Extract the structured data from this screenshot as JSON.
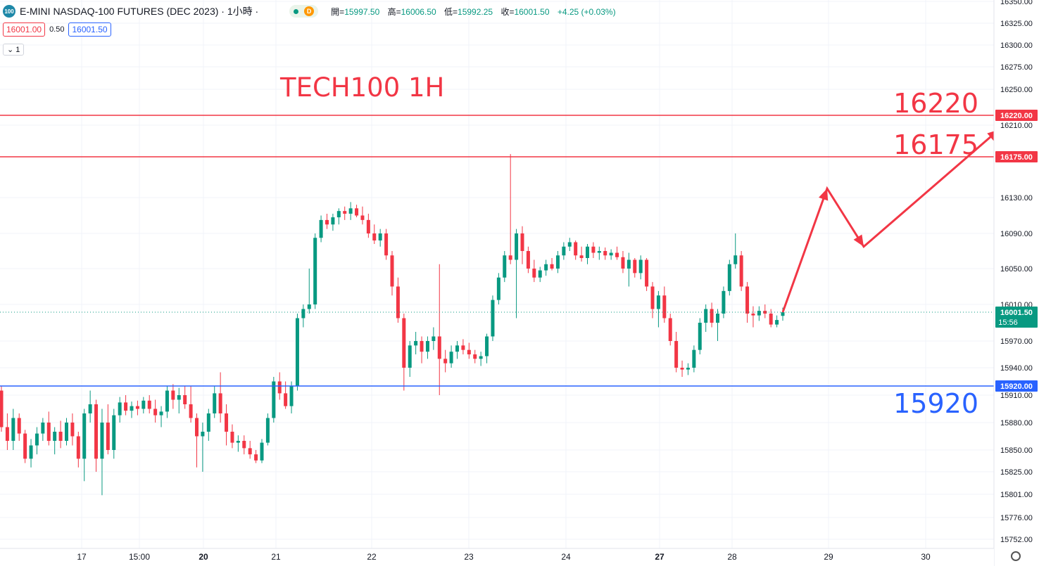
{
  "header": {
    "logo_text": "100",
    "symbol": "E-MINI NASDAQ-100 FUTURES (DEC 2023) · 1小時 ·",
    "badge_letter": "D",
    "open_label": "開=",
    "open_value": "15997.50",
    "high_label": "高=",
    "high_value": "16006.50",
    "low_label": "低=",
    "low_value": "15992.25",
    "close_label": "收=",
    "close_value": "16001.50",
    "change_value": "+4.25 (+0.03%)",
    "sell_price": "16001.00",
    "spread": "0.50",
    "buy_price": "16001.50",
    "volume_toggle": "1"
  },
  "colors": {
    "up": "#089981",
    "down": "#f23645",
    "resistance": "#f23645",
    "support": "#2962ff",
    "annotation_red": "#f23645",
    "annotation_blue": "#2962ff"
  },
  "chart_data": {
    "type": "candlestick",
    "title": "TECH100 1H",
    "y_axis_ticks": [
      16350,
      16325,
      16300,
      16275,
      16250,
      16220,
      16210,
      16175,
      16130,
      16090,
      16050,
      16010,
      15970,
      15940,
      15910,
      15880,
      15850,
      15825,
      15801,
      15776,
      15752
    ],
    "y_axis_tick_labels": [
      "16350.00",
      "16325.00",
      "16300.00",
      "16275.00",
      "16250.00",
      "16220.00",
      "16210.00",
      "16175.00",
      "16130.00",
      "16090.00",
      "16050.00",
      "16010.00",
      "15970.00",
      "15940.00",
      "15910.00",
      "15880.00",
      "15850.00",
      "15825.00",
      "15801.00",
      "15776.00",
      "15752.00"
    ],
    "ylim": [
      15745,
      16355
    ],
    "x_axis_labels": [
      "17",
      "15:00",
      "20",
      "21",
      "22",
      "23",
      "24",
      "27",
      "28",
      "29",
      "30"
    ],
    "x_axis_bold": [
      "20",
      "27"
    ],
    "price_labels": [
      {
        "value": 16220,
        "text": "16220.00",
        "color": "#f23645"
      },
      {
        "value": 16175,
        "text": "16175.00",
        "color": "#f23645"
      },
      {
        "value": 15920,
        "text": "15920.00",
        "color": "#2962ff"
      }
    ],
    "current_price": {
      "value": 16001.5,
      "text": "16001.50",
      "countdown": "15:56"
    },
    "horizontal_lines": [
      {
        "value": 16220,
        "color": "#f23645",
        "label": "16220"
      },
      {
        "value": 16175,
        "color": "#f23645",
        "label": "16175"
      },
      {
        "value": 15920,
        "color": "#2962ff",
        "label": "15920"
      }
    ],
    "projection_path": [
      {
        "x": "28",
        "y": 16001.5
      },
      {
        "x": "29",
        "y": 16140
      },
      {
        "x": "29",
        "y": 16075
      },
      {
        "x": "30",
        "y": 16205
      }
    ],
    "candles_hourly": [
      [
        15915,
        15920,
        15870,
        15875
      ],
      [
        15875,
        15890,
        15850,
        15860
      ],
      [
        15860,
        15895,
        15850,
        15885
      ],
      [
        15885,
        15890,
        15860,
        15868
      ],
      [
        15868,
        15872,
        15835,
        15840
      ],
      [
        15840,
        15862,
        15830,
        15855
      ],
      [
        15855,
        15875,
        15845,
        15868
      ],
      [
        15868,
        15885,
        15860,
        15880
      ],
      [
        15880,
        15892,
        15855,
        15860
      ],
      [
        15860,
        15875,
        15845,
        15870
      ],
      [
        15870,
        15882,
        15852,
        15860
      ],
      [
        15860,
        15885,
        15855,
        15880
      ],
      [
        15880,
        15890,
        15855,
        15865
      ],
      [
        15865,
        15870,
        15830,
        15840
      ],
      [
        15840,
        15895,
        15815,
        15890
      ],
      [
        15890,
        15915,
        15880,
        15900
      ],
      [
        15900,
        15905,
        15825,
        15840
      ],
      [
        15840,
        15895,
        15800,
        15880
      ],
      [
        15880,
        15900,
        15845,
        15850
      ],
      [
        15850,
        15895,
        15840,
        15888
      ],
      [
        15888,
        15908,
        15880,
        15902
      ],
      [
        15902,
        15910,
        15888,
        15893
      ],
      [
        15893,
        15903,
        15885,
        15898
      ],
      [
        15898,
        15904,
        15888,
        15895
      ],
      [
        15895,
        15908,
        15890,
        15904
      ],
      [
        15904,
        15910,
        15890,
        15895
      ],
      [
        15895,
        15905,
        15880,
        15888
      ],
      [
        15888,
        15898,
        15875,
        15892
      ],
      [
        15892,
        15920,
        15885,
        15915
      ],
      [
        15915,
        15922,
        15895,
        15905
      ],
      [
        15905,
        15918,
        15890,
        15910
      ],
      [
        15910,
        15920,
        15895,
        15900
      ],
      [
        15900,
        15920,
        15880,
        15885
      ],
      [
        15885,
        15890,
        15830,
        15865
      ],
      [
        15865,
        15880,
        15825,
        15870
      ],
      [
        15870,
        15895,
        15860,
        15890
      ],
      [
        15890,
        15920,
        15885,
        15912
      ],
      [
        15912,
        15935,
        15880,
        15890
      ],
      [
        15890,
        15900,
        15855,
        15870
      ],
      [
        15870,
        15878,
        15852,
        15858
      ],
      [
        15858,
        15866,
        15848,
        15860
      ],
      [
        15860,
        15866,
        15845,
        15852
      ],
      [
        15852,
        15860,
        15840,
        15845
      ],
      [
        15845,
        15850,
        15835,
        15838
      ],
      [
        15838,
        15862,
        15835,
        15858
      ],
      [
        15858,
        15890,
        15855,
        15885
      ],
      [
        15885,
        15930,
        15880,
        15925
      ],
      [
        15925,
        15935,
        15905,
        15912
      ],
      [
        15912,
        15925,
        15895,
        15898
      ],
      [
        15898,
        15925,
        15890,
        15920
      ],
      [
        15920,
        16000,
        15915,
        15995
      ],
      [
        15995,
        16010,
        15985,
        16005
      ],
      [
        16005,
        16050,
        16000,
        16010
      ],
      [
        16010,
        16090,
        16005,
        16085
      ],
      [
        16085,
        16110,
        16080,
        16105
      ],
      [
        16105,
        16112,
        16095,
        16100
      ],
      [
        16100,
        16112,
        16093,
        16108
      ],
      [
        16108,
        16118,
        16100,
        16115
      ],
      [
        16115,
        16120,
        16105,
        16112
      ],
      [
        16112,
        16125,
        16105,
        16118
      ],
      [
        16118,
        16122,
        16108,
        16110
      ],
      [
        16110,
        16120,
        16100,
        16105
      ],
      [
        16105,
        16112,
        16085,
        16090
      ],
      [
        16090,
        16100,
        16078,
        16082
      ],
      [
        16082,
        16095,
        16075,
        16090
      ],
      [
        16090,
        16095,
        16060,
        16065
      ],
      [
        16065,
        16070,
        16020,
        16030
      ],
      [
        16030,
        16040,
        15990,
        15995
      ],
      [
        15995,
        16000,
        15915,
        15940
      ],
      [
        15940,
        15970,
        15930,
        15965
      ],
      [
        15965,
        15980,
        15955,
        15970
      ],
      [
        15970,
        15975,
        15945,
        15958
      ],
      [
        15958,
        15975,
        15950,
        15970
      ],
      [
        15970,
        15985,
        15960,
        15975
      ],
      [
        15975,
        16055,
        15910,
        15950
      ],
      [
        15950,
        15960,
        15935,
        15945
      ],
      [
        15945,
        15965,
        15940,
        15958
      ],
      [
        15958,
        15970,
        15950,
        15965
      ],
      [
        15965,
        15972,
        15955,
        15960
      ],
      [
        15960,
        15968,
        15950,
        15955
      ],
      [
        15955,
        15960,
        15945,
        15950
      ],
      [
        15950,
        15958,
        15942,
        15953
      ],
      [
        15953,
        15978,
        15945,
        15975
      ],
      [
        15975,
        16020,
        15970,
        16015
      ],
      [
        16015,
        16045,
        16010,
        16040
      ],
      [
        16040,
        16070,
        16035,
        16065
      ],
      [
        16065,
        16178,
        16055,
        16060
      ],
      [
        16060,
        16095,
        15995,
        16090
      ],
      [
        16090,
        16098,
        16055,
        16070
      ],
      [
        16070,
        16075,
        16045,
        16050
      ],
      [
        16050,
        16060,
        16035,
        16040
      ],
      [
        16040,
        16052,
        16035,
        16048
      ],
      [
        16048,
        16060,
        16042,
        16055
      ],
      [
        16055,
        16062,
        16048,
        16050
      ],
      [
        16050,
        16070,
        16045,
        16065
      ],
      [
        16065,
        16080,
        16060,
        16075
      ],
      [
        16075,
        16085,
        16070,
        16080
      ],
      [
        16080,
        16082,
        16060,
        16065
      ],
      [
        16065,
        16075,
        16058,
        16062
      ],
      [
        16062,
        16078,
        16055,
        16075
      ],
      [
        16075,
        16080,
        16062,
        16068
      ],
      [
        16068,
        16075,
        16060,
        16070
      ],
      [
        16070,
        16074,
        16060,
        16065
      ],
      [
        16065,
        16072,
        16060,
        16068
      ],
      [
        16068,
        16075,
        16060,
        16063
      ],
      [
        16063,
        16070,
        16045,
        16050
      ],
      [
        16050,
        16068,
        16030,
        16060
      ],
      [
        16060,
        16062,
        16040,
        16045
      ],
      [
        16045,
        16065,
        16038,
        16060
      ],
      [
        16060,
        16062,
        16025,
        16030
      ],
      [
        16030,
        16035,
        15995,
        16005
      ],
      [
        16005,
        16025,
        15985,
        16020
      ],
      [
        16020,
        16030,
        15990,
        15995
      ],
      [
        15995,
        16000,
        15965,
        15970
      ],
      [
        15970,
        15980,
        15935,
        15940
      ],
      [
        15940,
        15948,
        15930,
        15938
      ],
      [
        15938,
        15945,
        15932,
        15940
      ],
      [
        15940,
        15965,
        15935,
        15960
      ],
      [
        15960,
        15995,
        15955,
        15990
      ],
      [
        15990,
        16010,
        15980,
        16005
      ],
      [
        16005,
        16012,
        15985,
        15990
      ],
      [
        15990,
        16005,
        15970,
        16000
      ],
      [
        16000,
        16030,
        15995,
        16025
      ],
      [
        16025,
        16060,
        16020,
        16055
      ],
      [
        16055,
        16090,
        16050,
        16065
      ],
      [
        16065,
        16070,
        16025,
        16030
      ],
      [
        16030,
        16035,
        15990,
        16000
      ],
      [
        16000,
        16008,
        15985,
        15998
      ],
      [
        15998,
        16008,
        15992,
        16003
      ],
      [
        16003,
        16010,
        15995,
        16000
      ],
      [
        16000,
        16005,
        15985,
        15988
      ],
      [
        15988,
        15998,
        15985,
        15993
      ],
      [
        15997.5,
        16006.5,
        15992.25,
        16001.5
      ]
    ]
  }
}
